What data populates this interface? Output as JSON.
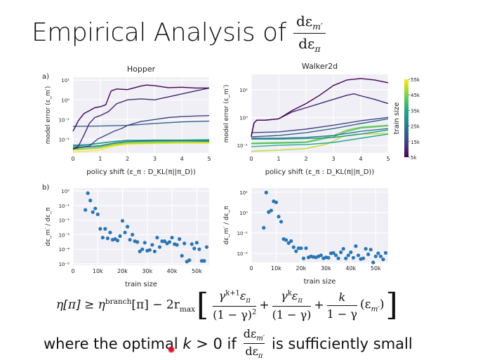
{
  "slide": {
    "title": "Empirical Analysis of",
    "title_fraction": {
      "numerator": "dε",
      "numerator_sub": "m′",
      "denominator": "dε",
      "denominator_sub": "π"
    },
    "equation": {
      "lhs": "η[π] ≥ η",
      "lhs_sup": "branch",
      "lhs_rest": "[π] − 2r",
      "rmax_sub": "max",
      "term1_num": "γ",
      "term1_num_sup": "k+1",
      "term1_num_rest": "ε",
      "term1_num_sub": "π",
      "term1_den": "(1 − γ)",
      "term1_den_sup": "2",
      "plus": "+",
      "term2_num": "γ",
      "term2_num_sup": "k",
      "term2_num_rest": "ε",
      "term2_num_sub": "π",
      "term2_den": "(1 − γ)",
      "term3_num": "k",
      "term3_den": "1 − γ",
      "term3_tail": "(ε",
      "term3_tail_sub": "m′",
      "term3_tail_close": ")"
    },
    "conclusion": {
      "prefix": "where the optimal ",
      "k": "k",
      "middle": " > 0 if",
      "frac_num": "dε",
      "frac_num_sub": "m′",
      "frac_den": "dε",
      "frac_den_sub": "π",
      "suffix": "is sufficiently small"
    },
    "cursor_color": "#e0102a"
  },
  "chart_data": [
    {
      "id": "hopper-model-error",
      "panel_label": "a)",
      "type": "line",
      "title": "Hopper",
      "xlabel": "policy shift (ε_π : D_KL(π||π_D))",
      "ylabel": "model error (ε_m′)",
      "yscale": "log",
      "xlim": [
        0,
        5
      ],
      "ylim_log10": [
        -2.7,
        1.15
      ],
      "xticks": [
        0,
        1,
        2,
        3,
        4,
        5
      ],
      "yticks_log10": [
        1,
        0,
        -1,
        -2
      ],
      "ytick_labels": [
        "10¹",
        "10⁰",
        "10⁻¹",
        "10⁻²"
      ],
      "grid": true,
      "series": [
        {
          "name": "5k",
          "train_size": 5000,
          "x": [
            0,
            0.2,
            0.4,
            0.6,
            0.8,
            1.0,
            1.2,
            1.4,
            1.6,
            2.0,
            2.5,
            2.7,
            3.0,
            3.5,
            4.0,
            4.5,
            5.0
          ],
          "y_log10": [
            -1.6,
            -1.05,
            -0.7,
            -0.55,
            -0.4,
            -0.35,
            -0.25,
            0.45,
            0.55,
            0.52,
            0.7,
            0.75,
            0.72,
            0.62,
            0.64,
            0.6,
            0.6
          ]
        },
        {
          "name": "10k",
          "train_size": 10000,
          "x": [
            0,
            0.2,
            0.4,
            0.6,
            0.8,
            1.0,
            1.3,
            1.6,
            2.0,
            2.5,
            3.0,
            3.5,
            4.0,
            4.5,
            5.0
          ],
          "y_log10": [
            -2.5,
            -2.35,
            -1.8,
            -1.2,
            -0.9,
            -0.8,
            -0.6,
            -0.2,
            0.0,
            0.05,
            0.0,
            0.15,
            0.3,
            0.45,
            0.6
          ]
        },
        {
          "name": "15k",
          "train_size": 15000,
          "x": [
            0,
            0.3,
            0.6,
            0.9,
            1.2,
            1.5,
            1.8,
            2.0,
            2.5,
            3.0,
            3.5,
            4.0,
            4.5,
            5.0
          ],
          "y_log10": [
            -2.5,
            -2.4,
            -2.35,
            -2.0,
            -1.8,
            -1.6,
            -1.45,
            -1.3,
            -1.1,
            -1.0,
            -0.9,
            -0.85,
            -0.82,
            -0.8
          ]
        },
        {
          "name": "20k",
          "train_size": 20000,
          "x": [
            0,
            1,
            2,
            3,
            4,
            5
          ],
          "y_log10": [
            -1.35,
            -1.33,
            -1.3,
            -1.2,
            -1.12,
            -1.08
          ]
        },
        {
          "name": "25k",
          "train_size": 25000,
          "x": [
            0,
            0.5,
            1.0,
            1.5,
            2.0,
            3.0,
            4.0,
            5.0
          ],
          "y_log10": [
            -2.45,
            -2.4,
            -2.35,
            -2.2,
            -2.12,
            -2.08,
            -2.08,
            -2.1
          ]
        },
        {
          "name": "30k",
          "train_size": 30000,
          "x": [
            0,
            0.5,
            1.0,
            1.5,
            2.0,
            3.0,
            4.0,
            5.0
          ],
          "y_log10": [
            -2.3,
            -2.28,
            -2.2,
            -2.12,
            -2.05,
            -2.05,
            -2.06,
            -2.05
          ]
        },
        {
          "name": "35k",
          "train_size": 35000,
          "x": [
            0,
            0.5,
            1.0,
            1.5,
            2.0,
            3.0,
            4.0,
            5.0
          ],
          "y_log10": [
            -2.35,
            -2.3,
            -2.2,
            -2.12,
            -2.06,
            -2.04,
            -2.04,
            -2.02
          ]
        },
        {
          "name": "40k",
          "train_size": 40000,
          "x": [
            0,
            0.5,
            1.0,
            1.5,
            2.0,
            3.0,
            4.0,
            5.0
          ],
          "y_log10": [
            -2.4,
            -2.38,
            -2.32,
            -2.2,
            -2.12,
            -2.1,
            -2.08,
            -2.06
          ]
        },
        {
          "name": "45k",
          "train_size": 45000,
          "x": [
            0,
            0.5,
            1.0,
            1.5,
            2.0,
            3.0,
            4.0,
            5.0
          ],
          "y_log10": [
            -2.5,
            -2.48,
            -2.42,
            -2.25,
            -2.18,
            -2.15,
            -2.12,
            -2.12
          ]
        },
        {
          "name": "50k",
          "train_size": 50000,
          "x": [
            0,
            0.5,
            1.0,
            1.5,
            2.0,
            3.0,
            4.0,
            5.0
          ],
          "y_log10": [
            -2.55,
            -2.5,
            -2.45,
            -2.3,
            -2.22,
            -2.2,
            -2.18,
            -2.17
          ]
        },
        {
          "name": "55k",
          "train_size": 55000,
          "x": [
            0,
            0.5,
            1.0,
            1.5,
            2.0,
            3.0,
            4.0,
            5.0
          ],
          "y_log10": [
            -2.65,
            -2.62,
            -2.55,
            -2.35,
            -2.25,
            -2.22,
            -2.2,
            -2.2
          ]
        }
      ]
    },
    {
      "id": "walker2d-model-error",
      "type": "line",
      "title": "Walker2d",
      "xlabel": "policy shift (ε_π : D_KL(π||π_D))",
      "ylabel": "model error (ε_m′)",
      "yscale": "log",
      "xlim": [
        0,
        5
      ],
      "ylim_log10": [
        -1.28,
        1.55
      ],
      "xticks": [
        0,
        1,
        2,
        3,
        4,
        5
      ],
      "yticks_log10": [
        1,
        0,
        -1
      ],
      "ytick_labels": [
        "10¹",
        "10⁰",
        "10⁻¹"
      ],
      "grid": true,
      "series": [
        {
          "name": "5k",
          "train_size": 5000,
          "x": [
            0,
            0.1,
            0.2,
            0.5,
            1.0,
            1.5,
            2.0,
            2.5,
            3.0,
            3.5,
            4.0,
            4.5,
            5.0
          ],
          "y_log10": [
            -0.7,
            -0.2,
            -0.1,
            -0.1,
            -0.05,
            0.25,
            0.5,
            0.8,
            1.15,
            1.35,
            1.4,
            1.35,
            1.25
          ]
        },
        {
          "name": "10k",
          "train_size": 10000,
          "x": [
            0,
            0.1,
            0.2,
            0.5,
            1.0,
            1.5,
            2.0,
            2.5,
            3.0,
            3.5,
            3.75,
            4.0,
            4.5,
            5.0
          ],
          "y_log10": [
            -0.65,
            -0.2,
            -0.1,
            -0.1,
            -0.05,
            0.2,
            0.35,
            0.5,
            0.65,
            0.8,
            0.85,
            0.78,
            0.65,
            0.5
          ]
        },
        {
          "name": "15k",
          "train_size": 15000,
          "x": [
            0,
            1,
            2,
            3,
            4,
            5
          ],
          "y_log10": [
            -0.55,
            -0.52,
            -0.42,
            -0.28,
            -0.12,
            0.0
          ]
        },
        {
          "name": "20k",
          "train_size": 20000,
          "x": [
            0,
            1,
            2,
            3,
            4,
            5
          ],
          "y_log10": [
            -0.7,
            -0.65,
            -0.55,
            -0.4,
            -0.22,
            -0.05
          ]
        },
        {
          "name": "25k",
          "train_size": 25000,
          "x": [
            0,
            1,
            2,
            3,
            4,
            5
          ],
          "y_log10": [
            -0.75,
            -0.75,
            -0.72,
            -0.65,
            -0.5,
            -0.4
          ]
        },
        {
          "name": "30k",
          "train_size": 30000,
          "x": [
            0,
            1,
            2,
            3,
            4,
            5
          ],
          "y_log10": [
            -0.78,
            -0.78,
            -0.76,
            -0.72,
            -0.6,
            -0.45
          ]
        },
        {
          "name": "35k",
          "train_size": 35000,
          "x": [
            0,
            1,
            2,
            3,
            4,
            5
          ],
          "y_log10": [
            -1.05,
            -1.0,
            -0.98,
            -0.9,
            -0.75,
            -0.6
          ]
        },
        {
          "name": "40k",
          "train_size": 40000,
          "x": [
            0,
            1,
            2,
            3,
            3.5,
            4.0,
            5.0
          ],
          "y_log10": [
            -0.95,
            -0.93,
            -0.9,
            -0.7,
            -0.5,
            -0.38,
            -0.3
          ]
        },
        {
          "name": "45k",
          "train_size": 45000,
          "x": [
            0,
            1,
            2,
            3,
            3.5,
            4.0,
            5.0
          ],
          "y_log10": [
            -0.92,
            -0.9,
            -0.88,
            -0.65,
            -0.45,
            -0.35,
            -0.28
          ]
        },
        {
          "name": "50k",
          "train_size": 50000,
          "x": [
            0,
            1,
            2,
            2.8,
            3.3,
            3.8,
            5.0
          ],
          "y_log10": [
            -1.22,
            -1.18,
            -1.12,
            -0.95,
            -0.7,
            -0.6,
            -0.58
          ]
        }
      ]
    },
    {
      "id": "hopper-derivative",
      "panel_label": "b)",
      "type": "scatter",
      "xlabel": "train size",
      "ylabel": "dε_m′ / dε_π",
      "yscale": "log",
      "xlim": [
        0,
        55000
      ],
      "ylim_log10": [
        -5.1,
        0.2
      ],
      "xticks": [
        0,
        10000,
        20000,
        30000,
        40000,
        50000
      ],
      "xtick_labels": [
        "0",
        "10k",
        "20k",
        "30k",
        "40k",
        "50k"
      ],
      "yticks_log10": [
        0,
        -1,
        -2,
        -3,
        -4,
        -5
      ],
      "ytick_labels": [
        "10⁰",
        "10⁻¹",
        "10⁻²",
        "10⁻³",
        "10⁻⁴",
        "10⁻⁵"
      ],
      "grid": true,
      "color": "#2a75b5",
      "x": [
        5000,
        6000,
        7000,
        8000,
        9000,
        10000,
        11000,
        12000,
        13000,
        14000,
        15000,
        16000,
        17000,
        18000,
        19000,
        20000,
        21000,
        22000,
        23000,
        24000,
        25000,
        26000,
        27000,
        28000,
        29000,
        30000,
        31000,
        32000,
        33000,
        34000,
        35000,
        36000,
        37000,
        38000,
        39000,
        40000,
        41000,
        42000,
        43000,
        44000,
        45000,
        46000,
        47000,
        48000,
        49000,
        50000,
        51000,
        52000,
        53000,
        54000
      ],
      "y_log10": [
        -1.3,
        -0.15,
        -0.65,
        -1.45,
        -1.2,
        -1.6,
        -2.6,
        -3.2,
        -2.6,
        -3.25,
        -2.85,
        -3.35,
        -3.3,
        -3.4,
        -3.1,
        -2.05,
        -2.85,
        -2.45,
        -3.35,
        -3.0,
        -3.45,
        -3.5,
        -4.15,
        -4.0,
        -3.55,
        -4.1,
        -4.05,
        -3.7,
        -4.15,
        -3.2,
        -3.85,
        -3.45,
        -3.45,
        -3.6,
        -3.5,
        -3.2,
        -3.65,
        -3.7,
        -3.3,
        -4.45,
        -3.6,
        -4.85,
        -4.75,
        -3.65,
        -3.95,
        -3.55,
        -4.0,
        -4.8,
        -4.8,
        -3.85
      ]
    },
    {
      "id": "walker2d-derivative",
      "type": "scatter",
      "xlabel": "train size",
      "ylabel": "dε_m′ / dε_π",
      "yscale": "log",
      "xlim": [
        0,
        55000
      ],
      "ylim_log10": [
        -2.45,
        1.2
      ],
      "xticks": [
        0,
        10000,
        20000,
        30000,
        40000,
        50000
      ],
      "xtick_labels": [
        "0",
        "10k",
        "20k",
        "30k",
        "40k",
        "50k"
      ],
      "yticks_log10": [
        1,
        0,
        -1,
        -2
      ],
      "ytick_labels": [
        "10¹",
        "10⁰",
        "10⁻¹",
        "10⁻²"
      ],
      "grid": true,
      "color": "#2a75b5",
      "x": [
        5000,
        6000,
        7000,
        8000,
        9000,
        10000,
        11000,
        12000,
        13000,
        14000,
        15000,
        16000,
        17000,
        18000,
        19000,
        20000,
        21000,
        22000,
        23000,
        24000,
        25000,
        26000,
        27000,
        28000,
        29000,
        30000,
        31000,
        32000,
        33000,
        34000,
        35000,
        36000,
        37000,
        38000,
        39000,
        40000,
        41000,
        42000,
        43000,
        44000,
        45000,
        46000,
        47000,
        48000,
        49000,
        50000,
        51000,
        52000,
        53000,
        54000
      ],
      "y_log10": [
        -0.75,
        0.98,
        0.02,
        0.1,
        0.55,
        0.5,
        -0.2,
        -0.45,
        -1.3,
        -1.35,
        -1.5,
        -1.4,
        -1.7,
        -1.9,
        -1.75,
        -1.75,
        -2.25,
        -1.75,
        -2.2,
        -2.15,
        -2.18,
        -2.2,
        -2.15,
        -2.1,
        -2.25,
        -2.2,
        -2.22,
        -2.0,
        -1.98,
        -2.1,
        -2.25,
        -1.95,
        -1.78,
        -2.25,
        -2.1,
        -1.95,
        -2.22,
        -1.65,
        -2.1,
        -2.28,
        -2.25,
        -1.78,
        -2.05,
        -1.82,
        -2.45,
        -2.15,
        -2.0,
        -2.15,
        -2.3,
        -1.98
      ]
    }
  ],
  "colorbar": {
    "label": "train size",
    "range": [
      5000,
      55000
    ],
    "ticks": [
      5000,
      15000,
      25000,
      35000,
      45000,
      55000
    ],
    "tick_labels": [
      "5k",
      "15k",
      "25k",
      "35k",
      "45k",
      "55k"
    ],
    "colormap": "viridis",
    "stops": [
      "#440154",
      "#472d7b",
      "#3b528b",
      "#2c728e",
      "#21918c",
      "#28ae80",
      "#5ec962",
      "#addc30",
      "#fde725"
    ]
  }
}
